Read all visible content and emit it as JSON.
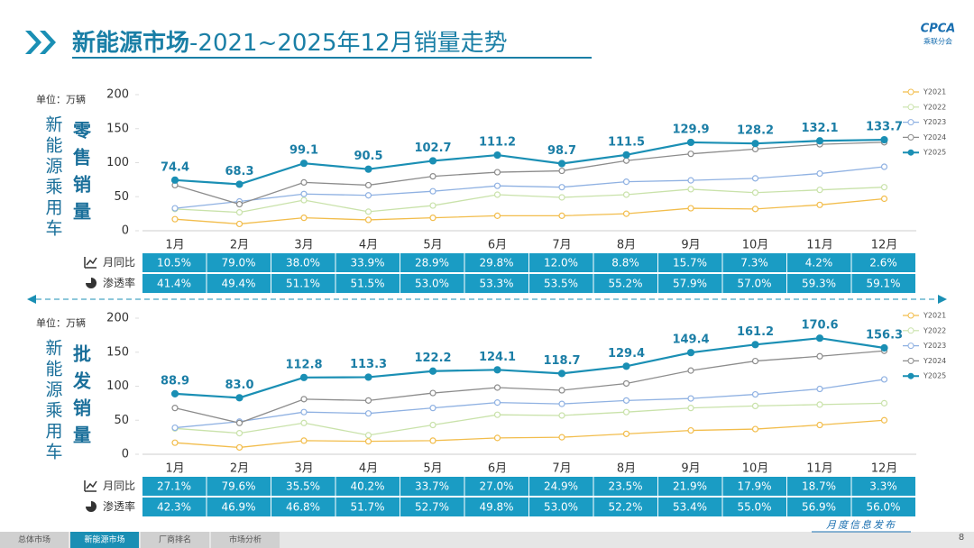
{
  "header": {
    "title_bold": "新能源市场",
    "title_rest": "-2021~2025年12月销量走势",
    "logo": "CPCA",
    "logo_sub": "乘联分会"
  },
  "footer": {
    "note": "月度信息发布",
    "page": "8",
    "tabs": [
      "总体市场",
      "新能源市场",
      "厂商排名",
      "市场分析"
    ]
  },
  "chart_data": [
    {
      "type": "line",
      "unit": "单位：万辆",
      "side_label": "新能源乘用车",
      "measure": "零售销量",
      "categories": [
        "1月",
        "2月",
        "3月",
        "4月",
        "5月",
        "6月",
        "7月",
        "8月",
        "9月",
        "10月",
        "11月",
        "12月"
      ],
      "ylim": [
        0,
        200
      ],
      "yticks": [
        0,
        50,
        100,
        150,
        200
      ],
      "series": [
        {
          "name": "Y2021",
          "color": "#f2bd4c",
          "values": [
            17,
            10,
            19,
            16,
            19,
            22,
            22,
            25,
            33,
            32,
            38,
            47
          ]
        },
        {
          "name": "Y2022",
          "color": "#c9e2aa",
          "values": [
            32,
            27,
            45,
            28,
            37,
            53,
            49,
            53,
            61,
            56,
            60,
            64
          ]
        },
        {
          "name": "Y2023",
          "color": "#8fb1e2",
          "values": [
            33,
            43,
            54,
            52,
            58,
            66,
            64,
            72,
            74,
            77,
            84,
            94
          ]
        },
        {
          "name": "Y2024",
          "color": "#8c8c8c",
          "values": [
            67,
            39,
            71,
            67,
            80,
            86,
            88,
            103,
            113,
            120,
            127,
            130
          ]
        },
        {
          "name": "Y2025",
          "color": "#1a8fb4",
          "values": [
            74.4,
            68.3,
            99.1,
            90.5,
            102.7,
            111.2,
            98.7,
            111.5,
            129.9,
            128.2,
            132.1,
            133.7
          ],
          "value_labels": [
            "74.4",
            "68.3",
            "99.1",
            "90.5",
            "102.7",
            "111.2",
            "98.7",
            "111.5",
            "129.9",
            "128.2",
            "132.1",
            "133.7"
          ]
        }
      ],
      "table": [
        {
          "label": "月同比",
          "cells": [
            "10.5%",
            "79.0%",
            "38.0%",
            "33.9%",
            "28.9%",
            "29.8%",
            "12.0%",
            "8.8%",
            "15.7%",
            "7.3%",
            "4.2%",
            "2.6%"
          ]
        },
        {
          "label": "渗透率",
          "cells": [
            "41.4%",
            "49.4%",
            "51.1%",
            "51.5%",
            "53.0%",
            "53.3%",
            "53.5%",
            "55.2%",
            "57.9%",
            "57.0%",
            "59.3%",
            "59.1%"
          ]
        }
      ]
    },
    {
      "type": "line",
      "unit": "单位：万辆",
      "side_label": "新能源乘用车",
      "measure": "批发销量",
      "categories": [
        "1月",
        "2月",
        "3月",
        "4月",
        "5月",
        "6月",
        "7月",
        "8月",
        "9月",
        "10月",
        "11月",
        "12月"
      ],
      "ylim": [
        0,
        200
      ],
      "yticks": [
        0,
        50,
        100,
        150,
        200
      ],
      "series": [
        {
          "name": "Y2021",
          "color": "#f2bd4c",
          "values": [
            17,
            10,
            20,
            19,
            20,
            24,
            25,
            30,
            35,
            37,
            43,
            50
          ]
        },
        {
          "name": "Y2022",
          "color": "#c9e2aa",
          "values": [
            38,
            31,
            46,
            28,
            43,
            58,
            57,
            62,
            68,
            71,
            73,
            75
          ]
        },
        {
          "name": "Y2023",
          "color": "#8fb1e2",
          "values": [
            39,
            48,
            62,
            60,
            68,
            76,
            74,
            79,
            82,
            88,
            96,
            110
          ]
        },
        {
          "name": "Y2024",
          "color": "#8c8c8c",
          "values": [
            68,
            46,
            81,
            79,
            90,
            98,
            94,
            104,
            123,
            137,
            144,
            152
          ]
        },
        {
          "name": "Y2025",
          "color": "#1a8fb4",
          "values": [
            88.9,
            83.0,
            112.8,
            113.3,
            122.2,
            124.1,
            118.7,
            129.4,
            149.4,
            161.2,
            170.6,
            156.3
          ],
          "value_labels": [
            "88.9",
            "83.0",
            "112.8",
            "113.3",
            "122.2",
            "124.1",
            "118.7",
            "129.4",
            "149.4",
            "161.2",
            "170.6",
            "156.3"
          ]
        }
      ],
      "table": [
        {
          "label": "月同比",
          "cells": [
            "27.1%",
            "79.6%",
            "35.5%",
            "40.2%",
            "33.7%",
            "27.0%",
            "24.9%",
            "23.5%",
            "21.9%",
            "17.9%",
            "18.7%",
            "3.3%"
          ]
        },
        {
          "label": "渗透率",
          "cells": [
            "42.3%",
            "46.9%",
            "46.8%",
            "51.7%",
            "52.7%",
            "49.8%",
            "53.0%",
            "52.2%",
            "53.4%",
            "55.0%",
            "56.9%",
            "56.0%"
          ]
        }
      ]
    }
  ]
}
